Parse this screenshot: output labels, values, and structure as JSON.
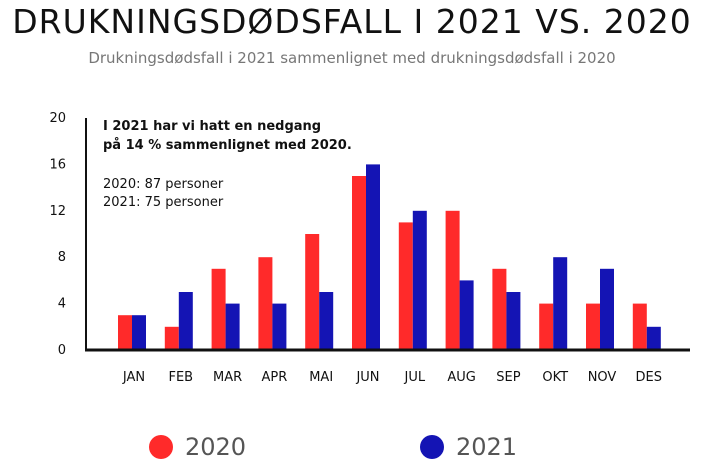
{
  "title": "DRUKNINGSDØDSFALL I 2021 VS. 2020",
  "subtitle": "Drukningsdødsfall i 2021 sammenlignet med drukningsdødsfall i 2020",
  "annotation": {
    "headline": [
      "I 2021 har vi hatt en nedgang",
      "på 14 % sammenlignet med 2020."
    ],
    "lines": [
      "2020: 87  personer",
      "2021: 75 personer"
    ]
  },
  "colors": {
    "2020": "#ff2a2a",
    "2021": "#1414b4"
  },
  "chart_data": {
    "type": "bar",
    "categories": [
      "JAN",
      "FEB",
      "MAR",
      "APR",
      "MAI",
      "JUN",
      "JUL",
      "AUG",
      "SEP",
      "OKT",
      "NOV",
      "DES"
    ],
    "series": [
      {
        "name": "2020",
        "values": [
          3,
          2,
          7,
          8,
          10,
          15,
          11,
          12,
          7,
          4,
          4,
          4
        ]
      },
      {
        "name": "2021",
        "values": [
          3,
          5,
          4,
          4,
          5,
          16,
          12,
          6,
          5,
          8,
          7,
          2
        ]
      }
    ],
    "yticks": [
      "0",
      "4",
      "8",
      "12",
      "16",
      "20"
    ],
    "ylim": [
      0,
      20
    ],
    "grid": false,
    "legend_position": "bottom"
  }
}
